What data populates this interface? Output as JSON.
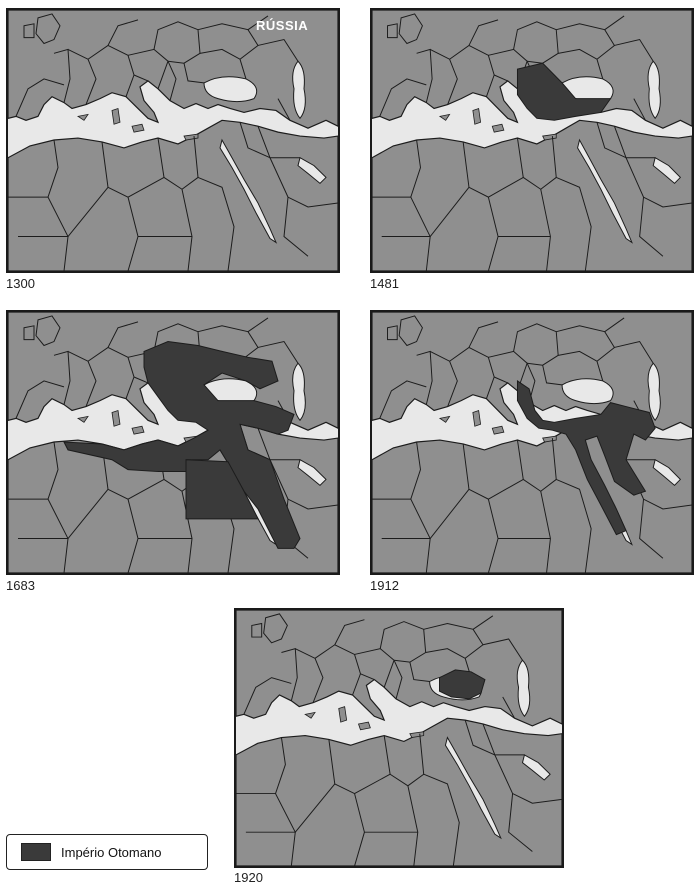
{
  "colors": {
    "sea": "#e8e8e8",
    "land": "#8f8f8f",
    "border": "#1c1c1c",
    "empire": "#3a3a3a"
  },
  "maps": [
    {
      "year": "1300",
      "empire_extent": "none",
      "label": "RÚSSIA"
    },
    {
      "year": "1481",
      "empire_extent": "balkans-anatolia"
    },
    {
      "year": "1683",
      "empire_extent": "maximum"
    },
    {
      "year": "1912",
      "empire_extent": "anatolia-levant-hejaz"
    },
    {
      "year": "1920",
      "empire_extent": "central-anatolia"
    }
  ],
  "legend": {
    "label": "Império Otomano",
    "icon": "dark-swatch"
  }
}
